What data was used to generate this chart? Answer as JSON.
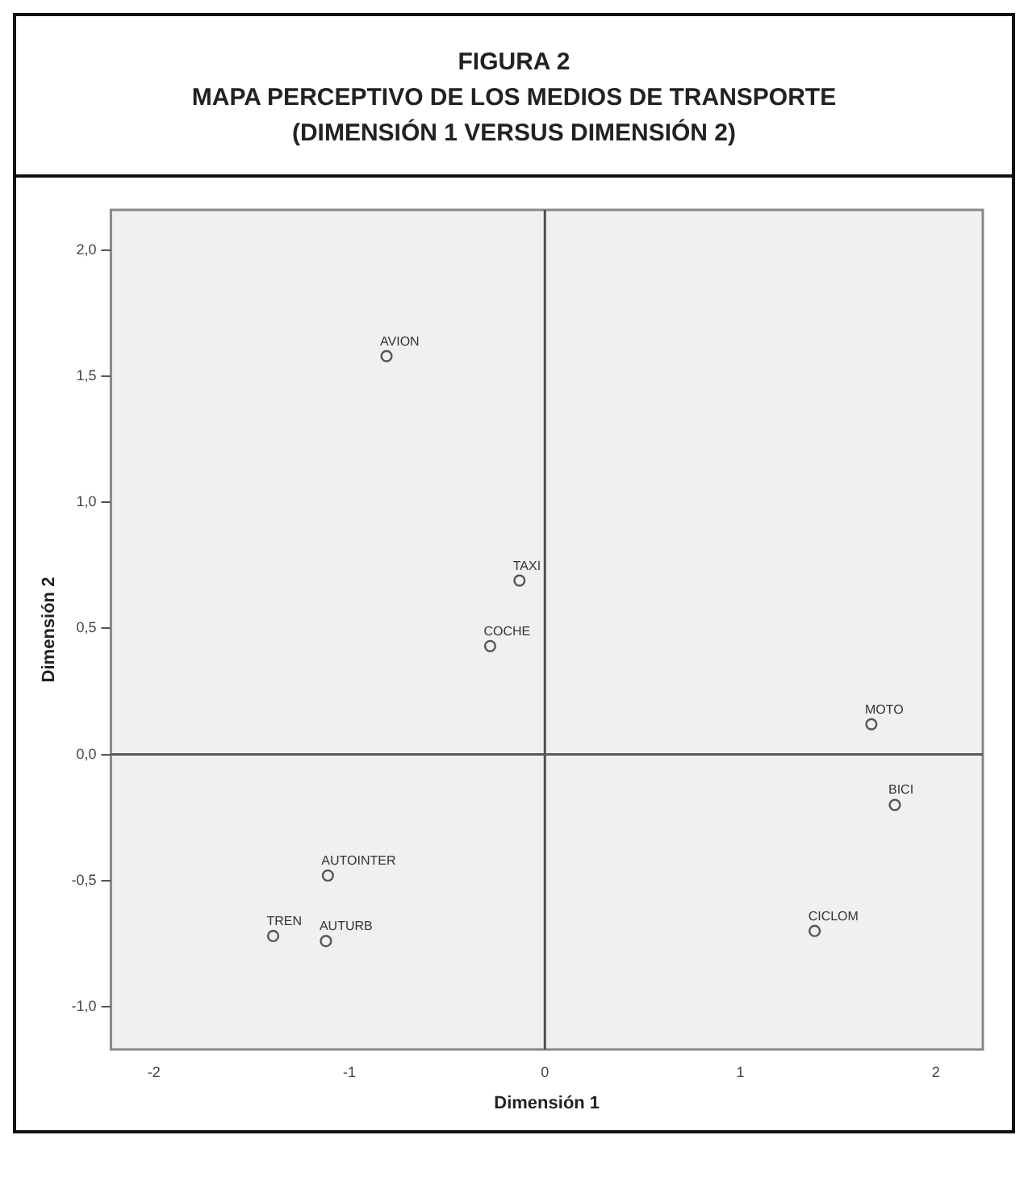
{
  "chart_data": {
    "type": "scatter",
    "title": "FIGURA 2",
    "subtitle": "MAPA PERCEPTIVO DE LOS MEDIOS DE TRANSPORTE\n(DIMENSIÓN 1 VERSUS DIMENSIÓN 2)",
    "xlabel": "Dimensión 1",
    "ylabel": "Dimensión 2",
    "x": [
      -0.81,
      -0.13,
      -0.28,
      1.67,
      1.79,
      1.38,
      -1.11,
      -1.39,
      -1.12
    ],
    "series": [
      {
        "color": "#555555",
        "values": [
          1.58,
          0.69,
          0.43,
          0.12,
          -0.2,
          -0.7,
          -0.48,
          -0.72,
          -0.74
        ]
      }
    ],
    "annotations": [
      {
        "text": "AVION",
        "x": -0.81,
        "y": 1.58
      },
      {
        "text": "TAXI",
        "x": -0.13,
        "y": 0.69
      },
      {
        "text": "COCHE",
        "x": -0.28,
        "y": 0.43
      },
      {
        "text": "MOTO",
        "x": 1.67,
        "y": 0.12
      },
      {
        "text": "BICI",
        "x": 1.79,
        "y": -0.2
      },
      {
        "text": "CICLOM",
        "x": 1.38,
        "y": -0.7
      },
      {
        "text": "AUTOINTER",
        "x": -1.11,
        "y": -0.48
      },
      {
        "text": "TREN",
        "x": -1.39,
        "y": -0.72
      },
      {
        "text": "AUTURB",
        "x": -1.12,
        "y": -0.74
      }
    ],
    "ref_lines": [
      {
        "axis": "x",
        "value": 0,
        "color": "#505050"
      },
      {
        "axis": "y",
        "value": 0,
        "color": "#5a5a5a"
      }
    ],
    "xlim": [
      -2.22,
      2.24
    ],
    "ylim": [
      -1.17,
      2.16
    ],
    "xticks": [
      -2,
      -1,
      0,
      1,
      2
    ],
    "yticks": [
      {
        "value": 2,
        "label": "2,0"
      },
      {
        "value": 1.5,
        "label": "1,5"
      },
      {
        "value": 1,
        "label": "1,0"
      },
      {
        "value": 0.5,
        "label": "0,5"
      },
      {
        "value": 0,
        "label": "0,0"
      },
      {
        "value": -0.5,
        "label": "-0,5"
      },
      {
        "value": -1,
        "label": "-1,0"
      }
    ],
    "marker": "circle",
    "grid": false,
    "legend": false
  }
}
